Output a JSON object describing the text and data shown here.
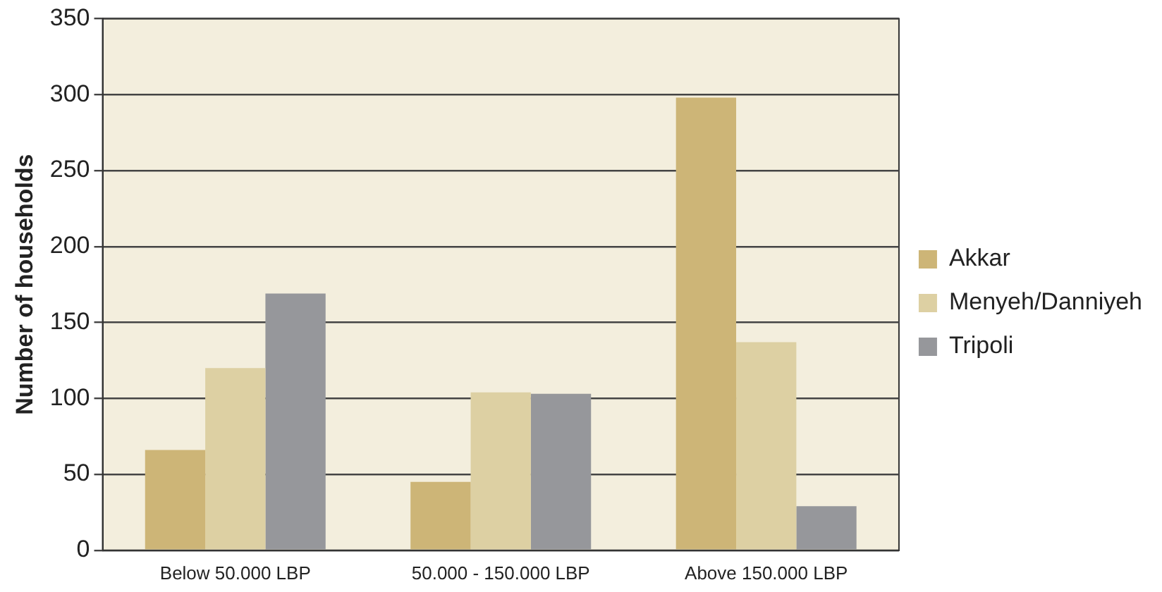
{
  "chart_data": {
    "type": "bar",
    "ylabel": "Number of households",
    "categories": [
      "Below 50.000 LBP",
      "50.000 - 150.000 LBP",
      "Above 150.000 LBP"
    ],
    "series": [
      {
        "name": "Akkar",
        "color": "#cdb577",
        "values": [
          66,
          45,
          298
        ]
      },
      {
        "name": "Menyeh/Danniyeh",
        "color": "#ddd0a3",
        "values": [
          120,
          104,
          137
        ]
      },
      {
        "name": "Tripoli",
        "color": "#96979b",
        "values": [
          169,
          103,
          29
        ]
      }
    ],
    "ylim": [
      0,
      350
    ],
    "yticks": [
      0,
      50,
      100,
      150,
      200,
      250,
      300,
      350
    ],
    "grid": "y",
    "legend": "right"
  }
}
